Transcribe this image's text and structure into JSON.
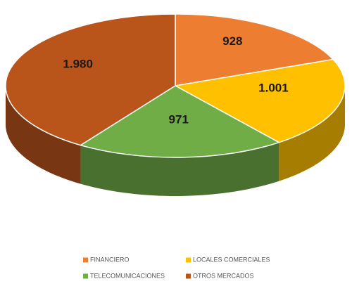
{
  "chart_data": {
    "type": "pie3d",
    "categories": [
      "FINANCIERO",
      "LOCALES COMERCIALES",
      "TELECOMUNICACIONES",
      "OTROS MERCADOS"
    ],
    "values": [
      928,
      1001,
      971,
      1980
    ],
    "value_labels": [
      "928",
      "1.001",
      "971",
      "1.980"
    ],
    "colors": [
      "#ed7d31",
      "#ffc000",
      "#70ad47",
      "#b9541b"
    ],
    "legend": "bottom"
  }
}
